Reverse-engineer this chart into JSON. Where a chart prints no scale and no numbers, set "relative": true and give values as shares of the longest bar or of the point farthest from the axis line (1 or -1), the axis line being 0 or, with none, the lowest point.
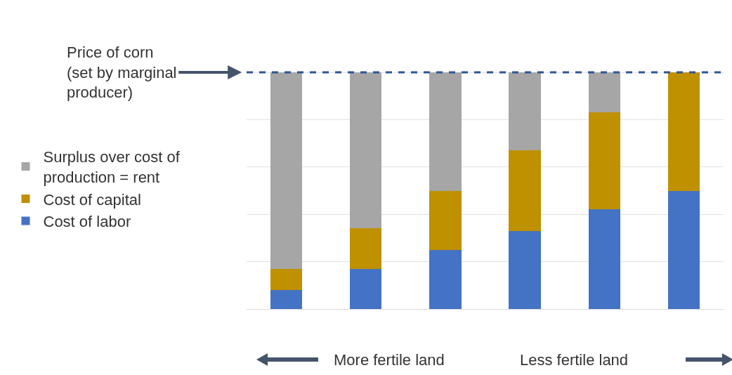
{
  "chart_data": {
    "type": "bar",
    "stacked": true,
    "relative": true,
    "categories": [
      null,
      null,
      null,
      null,
      null,
      null
    ],
    "series": [
      {
        "name": "Cost of labor",
        "color": "#4472c4",
        "values": [
          0.08,
          0.17,
          0.25,
          0.33,
          0.42,
          0.5
        ]
      },
      {
        "name": "Cost of capital",
        "color": "#bf9000",
        "values": [
          0.09,
          0.17,
          0.25,
          0.34,
          0.41,
          0.5
        ]
      },
      {
        "name": "Surplus over cost of production = rent",
        "color": "#a6a6a6",
        "values": [
          0.83,
          0.66,
          0.5,
          0.33,
          0.17,
          0
        ]
      }
    ],
    "ref_lines": [
      {
        "axis": "y",
        "value": 1,
        "label": "Price of corn (set by marginal producer)",
        "color": "#2f5597",
        "line_style": "dashed"
      }
    ],
    "annotations": [
      "More fertile land",
      "Less fertile land"
    ],
    "grid": "y",
    "legend": "left"
  }
}
